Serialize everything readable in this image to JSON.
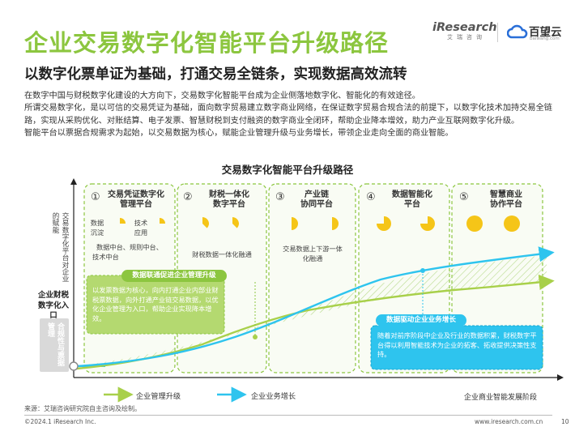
{
  "header": {
    "title": "企业交易数字化智能平台升级路径",
    "subtitle": "以数字化票单证为基础，打通交易全链条，实现数据高效流转",
    "logo_iresearch": "iResearch",
    "logo_iresearch_cn": "艾瑞咨询",
    "logo_baiwang": "百望云",
    "logo_baiwang_url": "baiwang.com"
  },
  "intro": {
    "paragraphs": [
      "在数字中国与财税数字化建设的大方向下，交易数字化智能平台成为企业侧落地数字化、智能化的有效途径。",
      "所谓交易数字化，是以可信的交易凭证为基础，面向数字贸易建立数字商业网络，在保证数字贸易合规合法的前提下，以数字化技术加持交易全链路，实现从采购优化、对账结算、电子发票、智慧财税到支付融资的数字商业全闭环，帮助企业降本增效，助力产业互联网数字化升级。",
      "智能平台以票据合规需求为起始，以交易数据为核心，赋能企业管理升级与业务增长，带领企业走向全面的商业智能。"
    ]
  },
  "diagram": {
    "title": "交易数字化智能平台升级路径",
    "y_axis_top": "交易数字化平台对企业的赋能",
    "y_axis_label": "企业财税数字化入口",
    "y_axis_bottom": "合规性与票据管理",
    "x_axis_label": "企业商业智能发展阶段",
    "stages": [
      {
        "num": "①",
        "title_1": "交易凭证数字化",
        "title_2": "管理平台",
        "labels": [
          "数据沉淀",
          "技术应用"
        ],
        "desc": [
          "数据中台、规则中台、",
          "技术中台"
        ],
        "fill": [
          0.25,
          0.25
        ]
      },
      {
        "num": "②",
        "title_1": "财税一体化",
        "title_2": "数字平台",
        "desc": [
          "财税数据一体化融通"
        ],
        "fill": [
          0.375,
          0.375
        ]
      },
      {
        "num": "③",
        "title_1": "产业链",
        "title_2": "协同平台",
        "desc": [
          "交易数据上下游一体",
          "化融通"
        ],
        "fill": [
          0.5,
          0.5
        ]
      },
      {
        "num": "④",
        "title_1": "数据智能化",
        "title_2": "平台",
        "desc": [],
        "fill": [
          0.75,
          0.75
        ]
      },
      {
        "num": "⑤",
        "title_1": "智慧商业",
        "title_2": "协作平台",
        "desc": [],
        "fill": [
          1,
          1
        ]
      }
    ],
    "callout_left": {
      "pill": "数据联通促进企业管理升级",
      "text": "以发票数据为核心，向内打通企业内部业财税票数据，向外打通产业链交易数据，以优化企业管理为入口，帮助企业实现降本增效。"
    },
    "callout_right": {
      "pill": "数据驱动企业业务增长",
      "text": "随着对前序阶段中企业及行业的数据积累，财税数字平台得以利用智能技术为企业的拓客、拓收提供决策性支持。"
    },
    "legend": [
      {
        "name": "企业管理升级",
        "color": "#a8d04a"
      },
      {
        "name": "企业业务增长",
        "color": "#2ec4ee"
      }
    ]
  },
  "footer": {
    "source": "来源：艾瑞咨询研究院自主咨询及绘制。",
    "copyright": "©2024.1 iResearch Inc.",
    "url": "www.iresearch.com.cn",
    "page": "10"
  }
}
